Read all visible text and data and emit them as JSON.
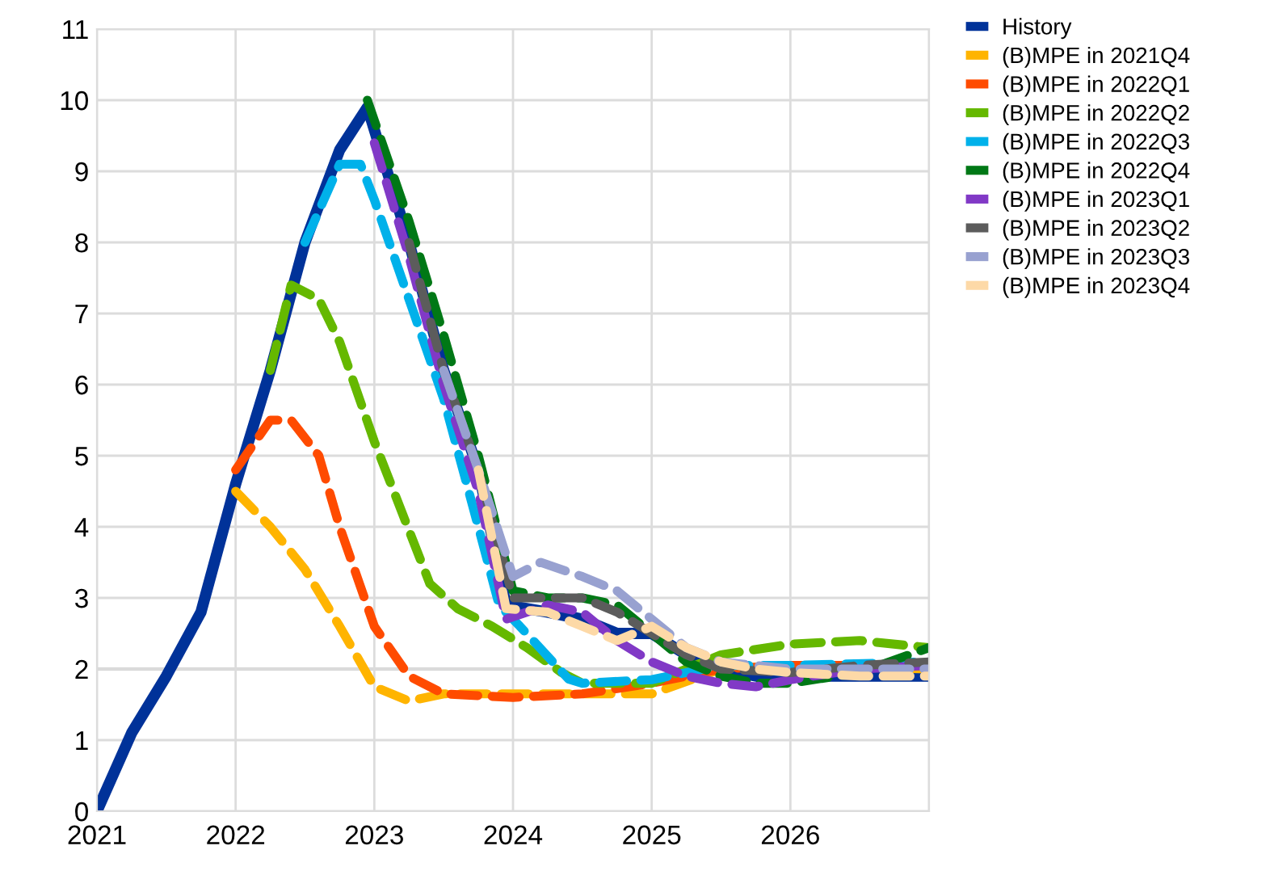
{
  "chart_data": {
    "type": "line",
    "xlim": [
      2021,
      2027
    ],
    "ylim": [
      0,
      11
    ],
    "xticks": [
      2021,
      2022,
      2023,
      2024,
      2025,
      2026,
      {
        "value": 2027,
        "label": null
      }
    ],
    "yticks": [
      0,
      1,
      2,
      3,
      4,
      5,
      6,
      7,
      8,
      9,
      10,
      11
    ],
    "grid": true,
    "legend": "top right",
    "ref_lines": [
      {
        "axis": "y",
        "value": 2,
        "color": "#a0a0a0"
      }
    ],
    "series": [
      {
        "name": "History",
        "color": "#003299",
        "line_style": "solid",
        "x": [
          2021.0,
          2021.25,
          2021.5,
          2021.75,
          2022.0,
          2022.25,
          2022.5,
          2022.75,
          2022.95,
          2023.25,
          2023.5,
          2023.75,
          2023.95,
          2024.25,
          2024.5,
          2024.75,
          2025.0,
          2025.25,
          2025.5,
          2025.75,
          2026.0,
          2026.5,
          2027.0
        ],
        "values": [
          0,
          1.1,
          1.9,
          2.8,
          4.6,
          6.2,
          8.0,
          9.3,
          9.9,
          8.0,
          6.2,
          4.8,
          2.9,
          2.8,
          2.7,
          2.5,
          2.5,
          2.2,
          2.0,
          1.9,
          1.9,
          1.9,
          1.9
        ]
      },
      {
        "name": "(B)MPE in 2021Q4",
        "color": "#ffb400",
        "line_style": "dashed",
        "x": [
          2022.0,
          2022.25,
          2022.5,
          2022.75,
          2023.0,
          2023.25,
          2023.5,
          2024.0,
          2024.5,
          2025.0,
          2025.5,
          2026.0,
          2027.0
        ],
        "values": [
          4.5,
          4.0,
          3.4,
          2.6,
          1.75,
          1.55,
          1.65,
          1.65,
          1.65,
          1.65,
          2.0,
          2.05,
          2.0
        ]
      },
      {
        "name": "(B)MPE in 2022Q1",
        "color": "#ff4b00",
        "line_style": "dashed",
        "x": [
          2022.0,
          2022.25,
          2022.4,
          2022.6,
          2022.75,
          2023.0,
          2023.25,
          2023.5,
          2024.0,
          2024.5,
          2025.0,
          2025.5,
          2026.0,
          2027.0
        ],
        "values": [
          4.8,
          5.5,
          5.5,
          5.0,
          4.0,
          2.6,
          1.9,
          1.65,
          1.6,
          1.65,
          1.8,
          2.0,
          2.05,
          2.05
        ]
      },
      {
        "name": "(B)MPE in 2022Q2",
        "color": "#65b800",
        "line_style": "dashed",
        "x": [
          2022.25,
          2022.4,
          2022.6,
          2022.75,
          2023.0,
          2023.4,
          2023.6,
          2023.85,
          2024.1,
          2024.35,
          2024.5,
          2025.0,
          2025.25,
          2025.5,
          2026.0,
          2026.5,
          2027.0
        ],
        "values": [
          6.2,
          7.4,
          7.2,
          6.6,
          5.2,
          3.2,
          2.85,
          2.6,
          2.3,
          1.95,
          1.8,
          1.8,
          2.0,
          2.2,
          2.35,
          2.4,
          2.3
        ]
      },
      {
        "name": "(B)MPE in 2022Q3",
        "color": "#00b1ea",
        "line_style": "dashed",
        "x": [
          2022.5,
          2022.75,
          2022.9,
          2023.0,
          2023.5,
          2023.75,
          2023.9,
          2024.05,
          2024.4,
          2024.5,
          2025.0,
          2025.5,
          2026.0,
          2027.0
        ],
        "values": [
          8.0,
          9.1,
          9.1,
          8.6,
          5.8,
          4.0,
          2.9,
          2.6,
          1.86,
          1.8,
          1.85,
          2.05,
          2.05,
          2.1
        ]
      },
      {
        "name": "(B)MPE in 2022Q4",
        "color": "#007816",
        "line_style": "dashed",
        "x": [
          2022.95,
          2023.25,
          2023.5,
          2023.75,
          2024.0,
          2024.25,
          2024.5,
          2024.75,
          2025.0,
          2025.25,
          2025.5,
          2025.75,
          2026.0,
          2026.5,
          2027.0
        ],
        "values": [
          10.0,
          8.3,
          6.7,
          5.0,
          3.1,
          3.0,
          3.0,
          2.9,
          2.5,
          2.1,
          1.9,
          1.8,
          1.8,
          1.95,
          2.3
        ]
      },
      {
        "name": "(B)MPE in 2023Q1",
        "color": "#8139c6",
        "line_style": "dashed",
        "x": [
          2023.0,
          2023.25,
          2023.5,
          2023.75,
          2023.95,
          2024.25,
          2024.5,
          2024.75,
          2025.0,
          2025.25,
          2025.5,
          2025.75,
          2026.0,
          2026.5,
          2027.0
        ],
        "values": [
          9.4,
          7.8,
          6.0,
          4.5,
          2.7,
          2.9,
          2.8,
          2.4,
          2.1,
          1.9,
          1.8,
          1.75,
          1.85,
          2.0,
          2.05
        ]
      },
      {
        "name": "(B)MPE in 2023Q2",
        "color": "#5c5c5c",
        "line_style": "dashed",
        "x": [
          2023.25,
          2023.5,
          2023.75,
          2024.0,
          2024.25,
          2024.5,
          2024.75,
          2025.0,
          2025.25,
          2025.5,
          2026.0,
          2026.5,
          2027.0
        ],
        "values": [
          8.0,
          6.2,
          4.8,
          3.0,
          3.0,
          3.0,
          2.8,
          2.5,
          2.2,
          2.0,
          1.95,
          2.05,
          2.1
        ]
      },
      {
        "name": "(B)MPE in 2023Q3",
        "color": "#98a1d0",
        "line_style": "dashed",
        "x": [
          2023.5,
          2023.75,
          2024.0,
          2024.2,
          2024.5,
          2024.75,
          2025.0,
          2025.25,
          2025.5,
          2026.0,
          2026.5,
          2027.0
        ],
        "values": [
          6.2,
          4.8,
          3.3,
          3.5,
          3.3,
          3.1,
          2.7,
          2.3,
          2.1,
          2.0,
          2.0,
          2.0
        ]
      },
      {
        "name": "(B)MPE in 2023Q4",
        "color": "#fdd9a7",
        "line_style": "dashed",
        "x": [
          2023.75,
          2023.95,
          2024.25,
          2024.5,
          2024.75,
          2025.0,
          2025.25,
          2025.5,
          2025.75,
          2026.0,
          2026.5,
          2027.0
        ],
        "values": [
          4.8,
          2.85,
          2.8,
          2.6,
          2.4,
          2.6,
          2.3,
          2.1,
          2.0,
          1.95,
          1.9,
          1.9
        ]
      }
    ]
  }
}
